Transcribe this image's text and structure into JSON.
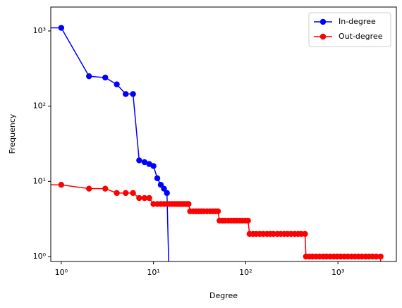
{
  "chart_data": {
    "type": "line",
    "xlabel": "Degree",
    "ylabel": "Frequency",
    "xscale": "log",
    "yscale": "log",
    "xlim": [
      0.77,
      4300
    ],
    "ylim": [
      0.86,
      2080
    ],
    "xticks": [
      {
        "value": 1,
        "label": "10⁰"
      },
      {
        "value": 10,
        "label": "10¹"
      },
      {
        "value": 100,
        "label": "10²"
      },
      {
        "value": 1000,
        "label": "10³"
      }
    ],
    "yticks": [
      {
        "value": 1,
        "label": "10⁰"
      },
      {
        "value": 10,
        "label": "10¹"
      },
      {
        "value": 100,
        "label": "10²"
      },
      {
        "value": 1000,
        "label": "10³"
      }
    ],
    "legend": "upper right",
    "series": [
      {
        "name": "In-degree",
        "color": "#0000ff",
        "x": [
          0,
          1,
          2,
          3,
          4,
          5,
          6,
          7,
          8,
          9,
          10,
          11,
          12,
          13,
          14,
          15
        ],
        "values": [
          1100,
          1100,
          250,
          240,
          195,
          145,
          145,
          19,
          18,
          17,
          16,
          11,
          9,
          8,
          7,
          0
        ]
      },
      {
        "name": "Out-degree",
        "color": "#ff0000",
        "x": [
          0,
          1,
          2,
          3,
          4,
          5,
          6,
          7,
          8,
          9,
          10,
          11,
          12,
          13,
          14,
          15,
          16,
          17,
          18,
          19,
          20,
          21,
          22,
          23,
          24,
          25,
          27,
          29,
          31,
          33,
          35,
          38,
          41,
          44,
          47,
          50,
          52,
          56,
          60,
          65,
          70,
          75,
          80,
          86,
          92,
          99,
          106,
          110,
          120,
          130,
          142,
          155,
          170,
          185,
          200,
          220,
          240,
          262,
          285,
          310,
          340,
          370,
          400,
          440,
          450,
          490,
          530,
          580,
          630,
          690,
          750,
          820,
          900,
          980,
          1070,
          1170,
          1280,
          1400,
          1530,
          1670,
          1820,
          1990,
          2170,
          2370,
          2600,
          2900,
          2910
        ],
        "values": [
          9,
          9,
          8,
          8,
          7,
          7,
          7,
          6,
          6,
          6,
          5,
          5,
          5,
          5,
          5,
          5,
          5,
          5,
          5,
          5,
          5,
          5,
          5,
          5,
          5,
          4,
          4,
          4,
          4,
          4,
          4,
          4,
          4,
          4,
          4,
          4,
          3,
          3,
          3,
          3,
          3,
          3,
          3,
          3,
          3,
          3,
          3,
          2,
          2,
          2,
          2,
          2,
          2,
          2,
          2,
          2,
          2,
          2,
          2,
          2,
          2,
          2,
          2,
          2,
          1,
          1,
          1,
          1,
          1,
          1,
          1,
          1,
          1,
          1,
          1,
          1,
          1,
          1,
          1,
          1,
          1,
          1,
          1,
          1,
          1,
          1,
          0
        ]
      }
    ]
  }
}
